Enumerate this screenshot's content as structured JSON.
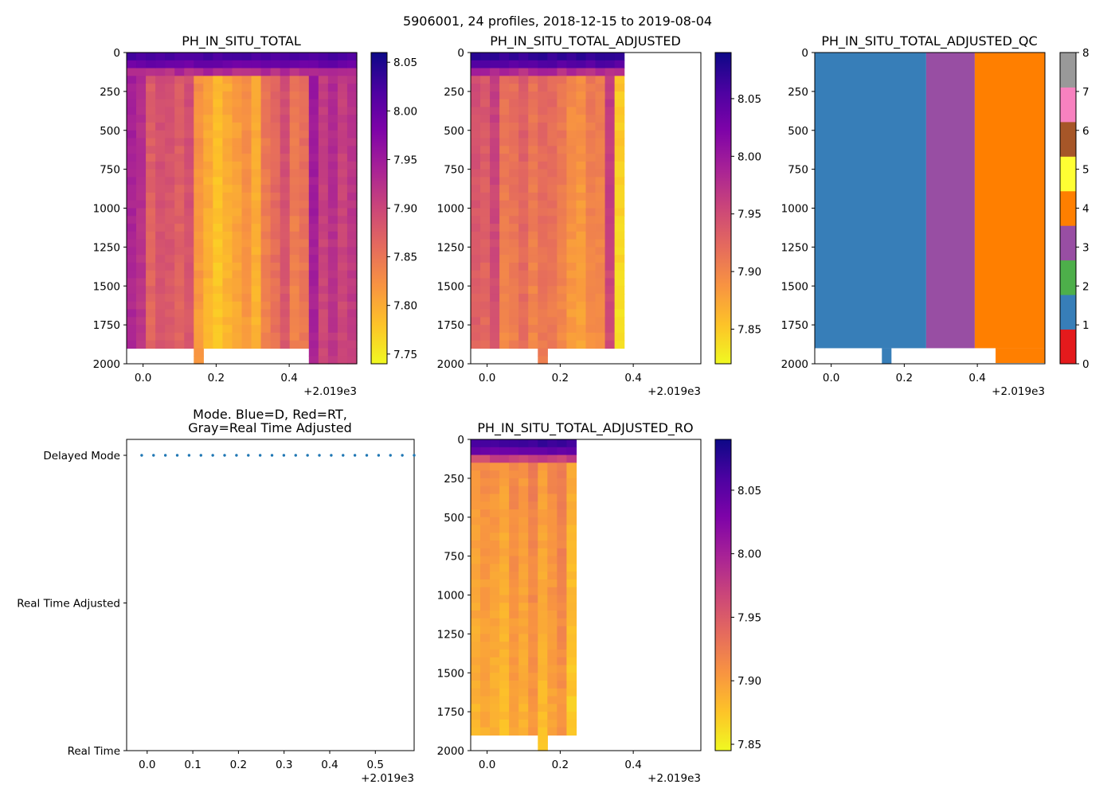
{
  "suptitle": "5906001, 24 profiles, 2018-12-15 to 2019-08-04",
  "axis_offset_label": "+2.019e3",
  "chart_data": [
    {
      "id": "p1",
      "type": "heatmap",
      "title": "PH_IN_SITU_TOTAL",
      "xlim": [
        -0.045,
        0.585
      ],
      "ylim": [
        2000,
        0
      ],
      "x_ticks": [
        "0.0",
        "0.2",
        "0.4"
      ],
      "y_ticks": [
        "0",
        "250",
        "500",
        "750",
        "1000",
        "1250",
        "1500",
        "1750",
        "2000"
      ],
      "profile_count": 24,
      "data_profiles": 24,
      "bottom_depth": 1900,
      "colormap": "plasma_r",
      "vmin": 7.74,
      "vmax": 8.06,
      "colorbar_ticks": [
        "7.75",
        "7.80",
        "7.85",
        "7.90",
        "7.95",
        "8.00",
        "8.05"
      ],
      "colorbar_values": [
        7.75,
        7.8,
        7.85,
        7.9,
        7.95,
        8.0,
        8.05
      ]
    },
    {
      "id": "p2",
      "type": "heatmap",
      "title": "PH_IN_SITU_TOTAL_ADJUSTED",
      "xlim": [
        -0.045,
        0.585
      ],
      "ylim": [
        2000,
        0
      ],
      "x_ticks": [
        "0.0",
        "0.2",
        "0.4"
      ],
      "y_ticks": [
        "0",
        "250",
        "500",
        "750",
        "1000",
        "1250",
        "1500",
        "1750",
        "2000"
      ],
      "profile_count": 24,
      "data_profiles": 16,
      "bottom_depth": 1900,
      "colormap": "plasma_r",
      "vmin": 7.82,
      "vmax": 8.09,
      "colorbar_ticks": [
        "7.85",
        "7.90",
        "7.95",
        "8.00",
        "8.05"
      ],
      "colorbar_values": [
        7.85,
        7.9,
        7.95,
        8.0,
        8.05
      ]
    },
    {
      "id": "p3",
      "type": "heatmap",
      "title": "PH_IN_SITU_TOTAL_ADJUSTED_QC",
      "xlim": [
        -0.045,
        0.585
      ],
      "ylim": [
        2000,
        0
      ],
      "x_ticks": [
        "0.0",
        "0.2",
        "0.4"
      ],
      "y_ticks": [
        "0",
        "250",
        "500",
        "750",
        "1000",
        "1250",
        "1500",
        "1750",
        "2000"
      ],
      "qc_segments": [
        {
          "x_from": -0.045,
          "x_to": 0.26,
          "flag": 1
        },
        {
          "x_from": 0.26,
          "x_to": 0.393,
          "flag": 3
        },
        {
          "x_from": 0.393,
          "x_to": 0.585,
          "flag": 4
        }
      ],
      "colorbar_ticks": [
        "0",
        "1",
        "2",
        "3",
        "4",
        "5",
        "6",
        "7",
        "8"
      ],
      "qc_colors": [
        "#e41a1c",
        "#377eb8",
        "#4daf4a",
        "#984ea3",
        "#ff7f00",
        "#ffff33",
        "#a65628",
        "#f781bf",
        "#999999"
      ]
    },
    {
      "id": "p4",
      "type": "scatter",
      "title_line1": "Mode. Blue=D, Red=RT,",
      "title_line2": "Gray=Real Time Adjusted",
      "xlim": [
        -0.045,
        0.585
      ],
      "x_ticks": [
        "0.0",
        "0.1",
        "0.2",
        "0.3",
        "0.4",
        "0.5"
      ],
      "y_categories": [
        "Real Time",
        "Real Time Adjusted",
        "Delayed Mode"
      ],
      "point_category": "Delayed Mode",
      "point_color": "#1f77b4",
      "point_count": 24
    },
    {
      "id": "p5",
      "type": "heatmap",
      "title": "PH_IN_SITU_TOTAL_ADJUSTED_RO",
      "xlim": [
        -0.045,
        0.585
      ],
      "ylim": [
        2000,
        0
      ],
      "x_ticks": [
        "0.0",
        "0.2",
        "0.4"
      ],
      "y_ticks": [
        "0",
        "250",
        "500",
        "750",
        "1000",
        "1250",
        "1500",
        "1750",
        "2000"
      ],
      "profile_count": 24,
      "data_profiles": 11,
      "bottom_depth": 1900,
      "colormap": "plasma_r",
      "vmin": 7.845,
      "vmax": 8.09,
      "colorbar_ticks": [
        "7.85",
        "7.90",
        "7.95",
        "8.00",
        "8.05"
      ],
      "colorbar_values": [
        7.85,
        7.9,
        7.95,
        8.0,
        8.05
      ]
    }
  ]
}
